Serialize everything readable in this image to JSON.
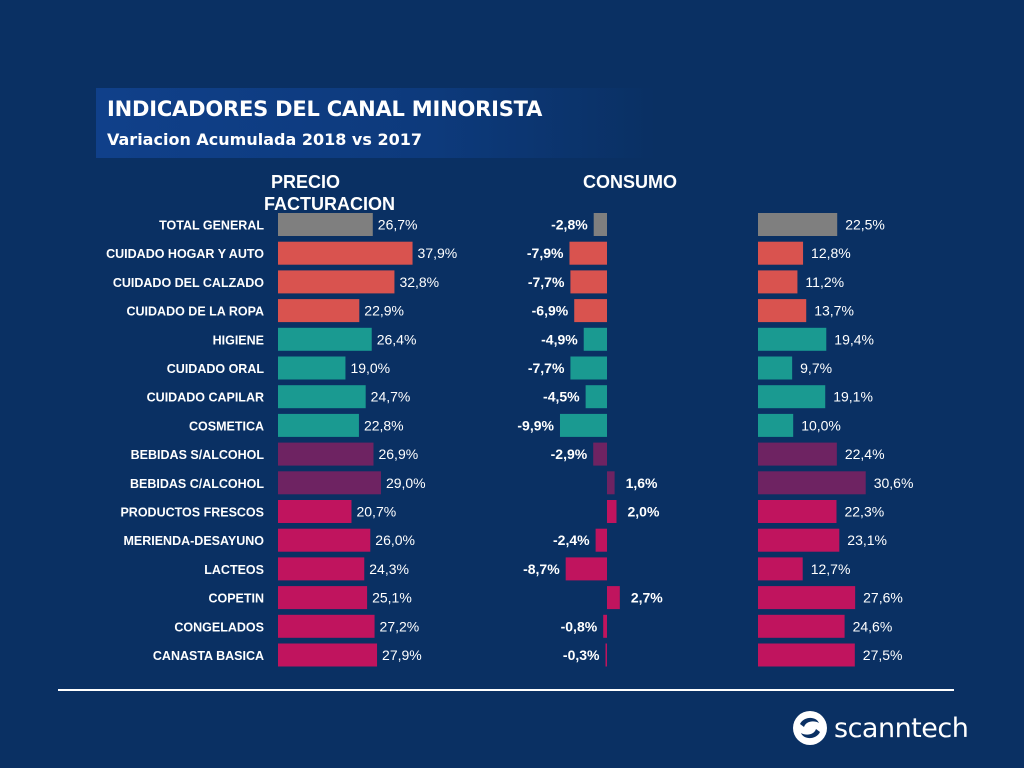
{
  "header": {
    "title": "INDICADORES DEL CANAL MINORISTA",
    "subtitle": "Variacion  Acumulada 2018 vs 2017"
  },
  "columns": {
    "facturacion": [
      "PRECIO",
      "FACTURACION"
    ],
    "consumo": "CONSUMO"
  },
  "logo": {
    "text": "scanntech",
    "icon": "scanntech-swirl-icon"
  },
  "colors": {
    "gray": "#7f7f7f",
    "red": "#d9534f",
    "teal": "#1a9a91",
    "purple": "#6e2362",
    "magenta": "#c0145e"
  },
  "chart_data": {
    "type": "bar",
    "categories": [
      "TOTAL GENERAL",
      "CUIDADO HOGAR Y AUTO",
      "CUIDADO DEL CALZADO",
      "CUIDADO DE LA ROPA",
      "HIGIENE",
      "CUIDADO ORAL",
      "CUIDADO CAPILAR",
      "COSMETICA",
      "BEBIDAS S/ALCOHOL",
      "BEBIDAS C/ALCOHOL",
      "PRODUCTOS FRESCOS",
      "MERIENDA-DESAYUNO",
      "LACTEOS",
      "COPETIN",
      "CONGELADOS",
      "CANASTA BASICA"
    ],
    "color_groups": [
      "gray",
      "red",
      "red",
      "red",
      "teal",
      "teal",
      "teal",
      "teal",
      "purple",
      "purple",
      "magenta",
      "magenta",
      "magenta",
      "magenta",
      "magenta",
      "magenta"
    ],
    "series": [
      {
        "values": [
          26.7,
          37.9,
          32.8,
          22.9,
          26.4,
          19.0,
          24.7,
          22.8,
          26.9,
          29.0,
          20.7,
          26.0,
          24.3,
          25.1,
          27.2,
          27.9
        ],
        "labels": [
          "26,7%",
          "37,9%",
          "32,8%",
          "22,9%",
          "26,4%",
          "19,0%",
          "24,7%",
          "22,8%",
          "26,9%",
          "29,0%",
          "20,7%",
          "26,0%",
          "24,3%",
          "25,1%",
          "27,2%",
          "27,9%"
        ]
      },
      {
        "name": "CONSUMO",
        "values": [
          -2.8,
          -7.9,
          -7.7,
          -6.9,
          -4.9,
          -7.7,
          -4.5,
          -9.9,
          -2.9,
          1.6,
          2.0,
          -2.4,
          -8.7,
          2.7,
          -0.8,
          -0.3
        ],
        "labels": [
          "-2,8%",
          "-7,9%",
          "-7,7%",
          "-6,9%",
          "-4,9%",
          "-7,7%",
          "-4,5%",
          "-9,9%",
          "-2,9%",
          "1,6%",
          "2,0%",
          "-2,4%",
          "-8,7%",
          "2,7%",
          "-0,8%",
          "-0,3%"
        ]
      },
      {
        "values": [
          22.5,
          12.8,
          11.2,
          13.7,
          19.4,
          9.7,
          19.1,
          10.0,
          22.4,
          30.6,
          22.3,
          23.1,
          12.7,
          27.6,
          24.6,
          27.5
        ],
        "labels": [
          "22,5%",
          "12,8%",
          "11,2%",
          "13,7%",
          "19,4%",
          "9,7%",
          "19,1%",
          "10,0%",
          "22,4%",
          "30,6%",
          "22,3%",
          "23,1%",
          "12,7%",
          "27,6%",
          "24,6%",
          "27,5%"
        ]
      }
    ],
    "grid": false,
    "legend": "none"
  }
}
